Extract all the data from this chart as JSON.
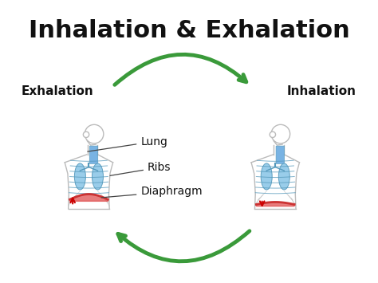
{
  "title": "Inhalation & Exhalation",
  "title_fontsize": 22,
  "title_fontweight": "bold",
  "title_color": "#111111",
  "background_color": "#ffffff",
  "label_exhalation": "Exhalation",
  "label_inhalation": "Inhalation",
  "label_lung": "Lung",
  "label_ribs": "Ribs",
  "label_diaphragm": "Diaphragm",
  "label_fontsize": 9,
  "side_label_fontsize": 11,
  "label_color": "#111111",
  "arrow_color": "#3a9a3a",
  "arrow_linewidth": 3.5,
  "body_outline_color": "#bbbbbb",
  "lung_fill_color": "#8ec8e8",
  "lung_edge_color": "#5599bb",
  "rib_line_color": "#5599bb",
  "diaphragm_color": "#cc3333",
  "diaphragm_fill": "#dd4444",
  "up_arrow_color": "#cc0000",
  "down_arrow_color": "#cc0000",
  "trachea_color": "#6aabe0",
  "fig_width": 4.74,
  "fig_height": 3.55,
  "dpi": 100,
  "xlim": [
    0,
    10
  ],
  "ylim": [
    0,
    7.5
  ]
}
